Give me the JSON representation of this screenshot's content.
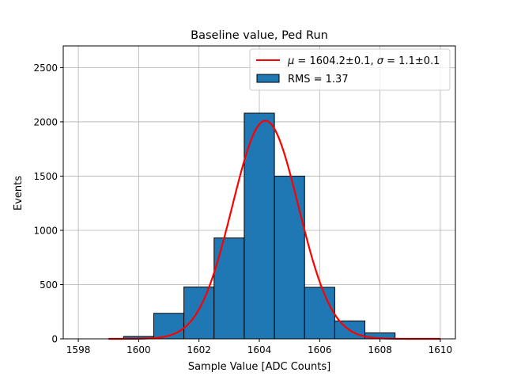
{
  "chart_data": {
    "type": "bar",
    "title": "Baseline value, Ped Run",
    "xlabel": "Sample Value [ADC Counts]",
    "ylabel": "Events",
    "xlim": [
      1597.5,
      1610.5
    ],
    "ylim": [
      0,
      2700
    ],
    "xticks": [
      1598,
      1600,
      1602,
      1604,
      1606,
      1608,
      1610
    ],
    "yticks": [
      0,
      500,
      1000,
      1500,
      2000,
      2500
    ],
    "grid": true,
    "legend_position": "top-right",
    "histogram": {
      "label": "RMS = 1.37",
      "bin_edges": [
        1599.5,
        1600.5,
        1601.5,
        1602.5,
        1603.5,
        1604.5,
        1605.5,
        1606.5,
        1607.5,
        1608.5
      ],
      "counts": [
        22,
        235,
        478,
        930,
        2080,
        1500,
        475,
        165,
        55
      ],
      "color": "#1f77b4",
      "edgecolor": "#000000"
    },
    "fit": {
      "label_mu": "μ",
      "label_text_1": " = 1604.2±0.1, ",
      "label_sigma": "σ",
      "label_text_2": " = 1.1±0.1",
      "mu": 1604.2,
      "sigma": 1.1,
      "amplitude": 2010,
      "x_range": [
        1599,
        1610
      ],
      "color": "#ff0000"
    }
  }
}
